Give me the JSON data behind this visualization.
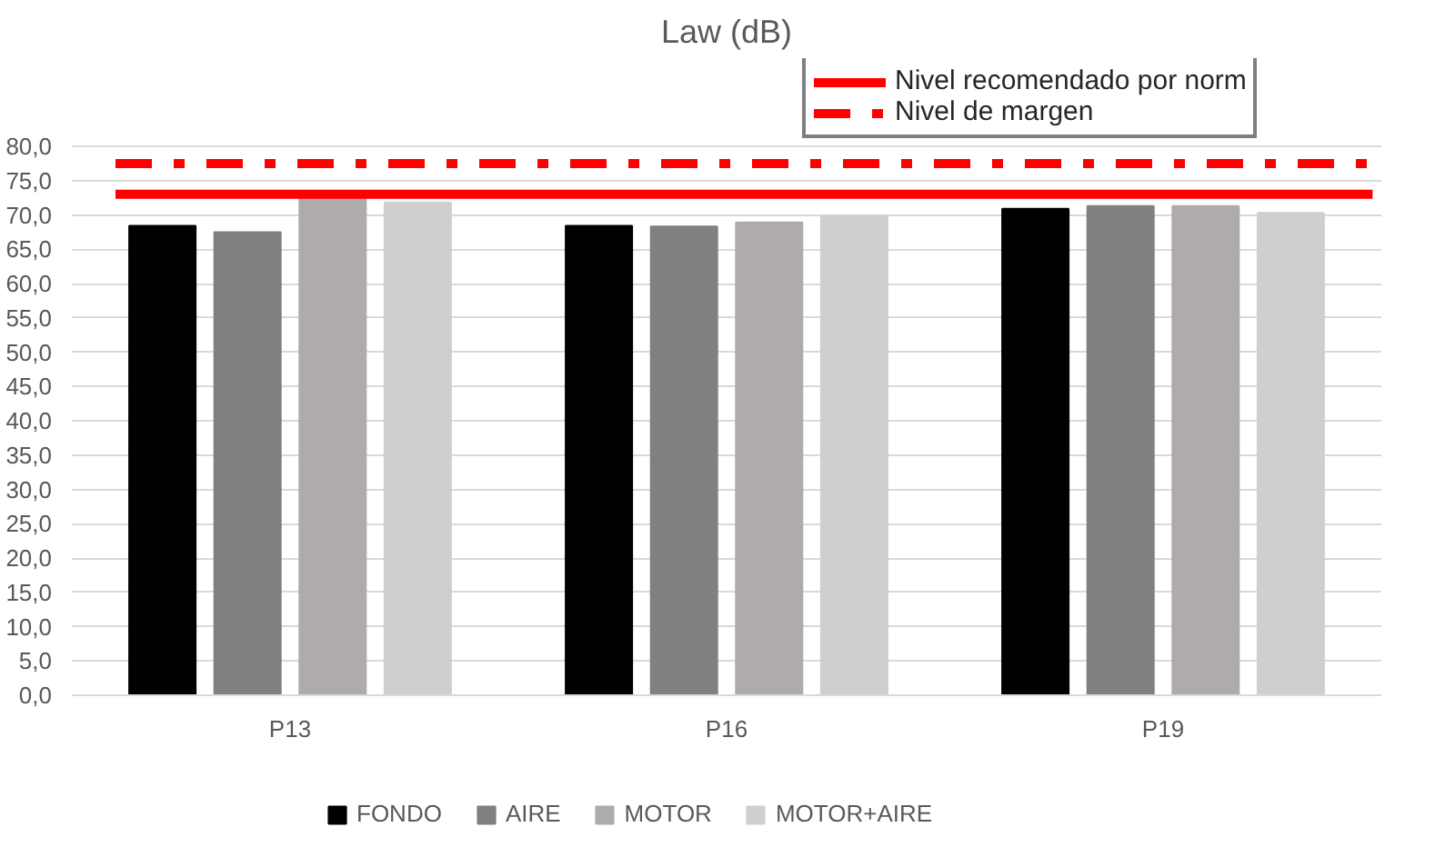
{
  "chart_data": {
    "type": "bar",
    "title": "Law (dB)",
    "categories": [
      "P13",
      "P16",
      "P19"
    ],
    "series": [
      {
        "name": "FONDO",
        "color": "#000000",
        "values": [
          68.4,
          68.4,
          70.9
        ]
      },
      {
        "name": "AIRE",
        "color": "#808080",
        "values": [
          67.5,
          68.3,
          71.3
        ]
      },
      {
        "name": "MOTOR",
        "color": "#afabab",
        "values": [
          72.4,
          68.9,
          71.3
        ]
      },
      {
        "name": "MOTOR+AIRE",
        "color": "#d0cece",
        "values": [
          71.8,
          69.9,
          70.3
        ]
      }
    ],
    "ylim": [
      0,
      80
    ],
    "yticks": [
      {
        "value": 0,
        "label": "0,0"
      },
      {
        "value": 5,
        "label": "5,0"
      },
      {
        "value": 10,
        "label": "10,0"
      },
      {
        "value": 15,
        "label": "15,0"
      },
      {
        "value": 20,
        "label": "20,0"
      },
      {
        "value": 25,
        "label": "25,0"
      },
      {
        "value": 30,
        "label": "30,0"
      },
      {
        "value": 35,
        "label": "35,0"
      },
      {
        "value": 40,
        "label": "40,0"
      },
      {
        "value": 45,
        "label": "45,0"
      },
      {
        "value": 50,
        "label": "50,0"
      },
      {
        "value": 55,
        "label": "55,0"
      },
      {
        "value": 60,
        "label": "60,0"
      },
      {
        "value": 65,
        "label": "65,0"
      },
      {
        "value": 70,
        "label": "70,0"
      },
      {
        "value": 75,
        "label": "75,0"
      },
      {
        "value": 80,
        "label": "80,0"
      }
    ],
    "ref_lines": [
      {
        "axis": "y",
        "value": 73.0,
        "label": "Nivel recomendado por norm",
        "color": "#ff0000",
        "line_style": "solid"
      },
      {
        "axis": "y",
        "value": 77.5,
        "label": "Nivel de margen",
        "color": "#ff0000",
        "line_style": "dashdot"
      }
    ],
    "grid": "y",
    "legend": "bottom"
  }
}
